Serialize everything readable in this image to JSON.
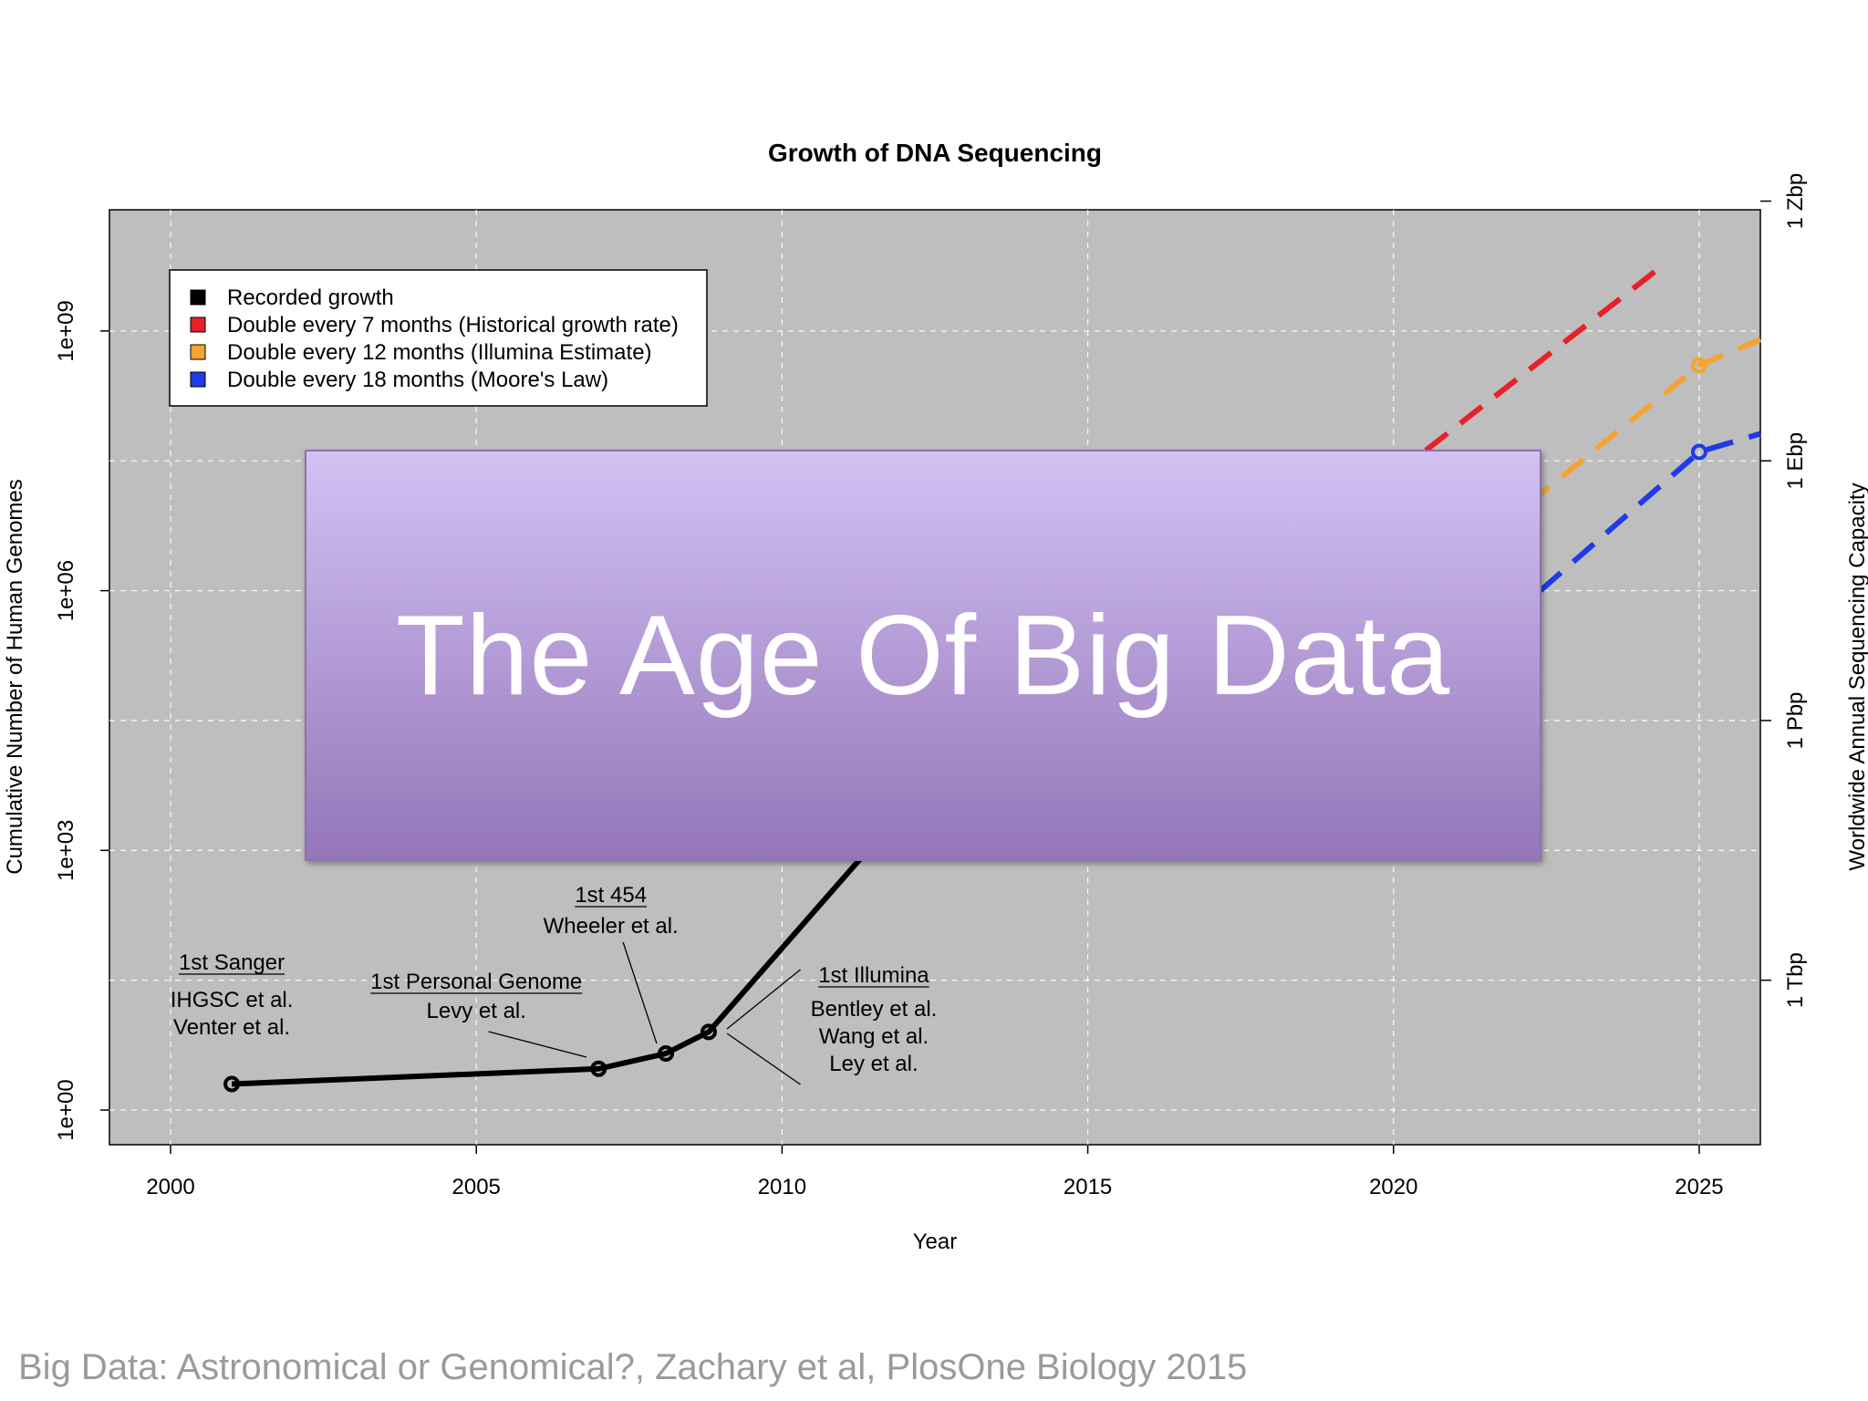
{
  "chart_data": {
    "type": "line",
    "title": "Growth of DNA Sequencing",
    "xlabel": "Year",
    "ylabel": "Cumulative Number of Human Genomes",
    "y2label": "Worldwide Annual Sequencing Capacity",
    "xlim": [
      1999,
      2026
    ],
    "ylim_log10": [
      -0.4,
      10.4
    ],
    "y_scale": "log",
    "grid": true,
    "background": "#bebebe",
    "x_ticks": [
      "2000",
      "2005",
      "2010",
      "2015",
      "2020",
      "2025"
    ],
    "y_ticks": [
      "1e+00",
      "1e+03",
      "1e+06",
      "1e+09"
    ],
    "y2_ticks": [
      "1 Tbp",
      "1 Pbp",
      "1 Ebp",
      "1 Zbp"
    ],
    "series": [
      {
        "name": "Recorded growth",
        "color": "#000000",
        "style": "solid",
        "x": [
          2001,
          2007,
          2008.1,
          2008.8,
          2011.4
        ],
        "y": [
          2,
          3,
          4.5,
          8,
          1000
        ]
      },
      {
        "name": "Double every 7 months (Historical growth rate)",
        "color": "#e8202a",
        "style": "dashed",
        "x": [
          2019.4,
          2024.3
        ],
        "y": [
          10000000,
          5000000000
        ]
      },
      {
        "name": "Double every 12 months (Illumina Estimate)",
        "color": "#f5a333",
        "style": "dashed",
        "x": [
          2022.2,
          2025,
          2026
        ],
        "y": [
          10000000,
          400000000,
          800000000
        ]
      },
      {
        "name": "Double every 18 months (Moore's Law)",
        "color": "#1f3be8",
        "style": "dashed",
        "x": [
          2022.4,
          2025,
          2026
        ],
        "y": [
          1000000,
          40000000,
          65000000
        ]
      }
    ],
    "markers": [
      {
        "series": 0,
        "x": 2001,
        "y": 2
      },
      {
        "series": 0,
        "x": 2007,
        "y": 3
      },
      {
        "series": 0,
        "x": 2008.1,
        "y": 4.5
      },
      {
        "series": 0,
        "x": 2008.8,
        "y": 8
      },
      {
        "series": 2,
        "x": 2025,
        "y": 400000000
      },
      {
        "series": 3,
        "x": 2025,
        "y": 40000000
      }
    ],
    "legend_position": "top-left",
    "annotations": [
      {
        "heading": "1st Sanger",
        "lines": [
          "IHGSC et al.",
          "Venter et al."
        ]
      },
      {
        "heading": "1st Personal Genome",
        "lines": [
          "Levy et al."
        ]
      },
      {
        "heading": "1st 454",
        "lines": [
          "Wheeler et al."
        ]
      },
      {
        "heading": "1st Illumina",
        "lines": [
          "Bentley et al.",
          "Wang et al.",
          "Ley et al."
        ]
      }
    ]
  },
  "banner": {
    "text": "The Age Of Big Data"
  },
  "citation": "Big Data: Astronomical or Genomical?, Zachary et al, PlosOne Biology 2015"
}
